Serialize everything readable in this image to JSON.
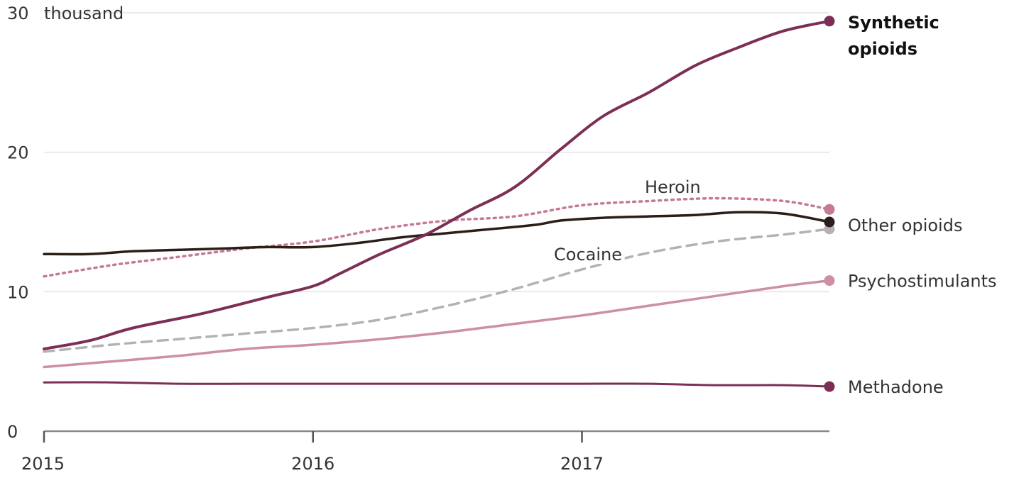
{
  "chart_data": {
    "type": "line",
    "y_unit_label": "thousand",
    "x_ticks": [
      "2015",
      "2016",
      "2017"
    ],
    "y_ticks": [
      0,
      10,
      20,
      30
    ],
    "xlim": [
      2015.0,
      2017.92
    ],
    "ylim": [
      0,
      30
    ],
    "grid": true,
    "legend": "direct labels at line ends",
    "series": [
      {
        "name": "Synthetic opioids",
        "label_style": "bold",
        "color": "#7d2e54",
        "stroke": "solid",
        "width": 4,
        "end_dot": true,
        "x": [
          2015.0,
          2015.17,
          2015.33,
          2015.58,
          2015.83,
          2016.0,
          2016.1,
          2016.25,
          2016.42,
          2016.58,
          2016.75,
          2016.92,
          2017.08,
          2017.25,
          2017.42,
          2017.58,
          2017.75,
          2017.92
        ],
        "y": [
          5.9,
          6.5,
          7.4,
          8.4,
          9.6,
          10.4,
          11.3,
          12.7,
          14.1,
          15.8,
          17.5,
          20.2,
          22.6,
          24.3,
          26.2,
          27.5,
          28.7,
          29.4
        ]
      },
      {
        "name": "Heroin",
        "color": "#c47a94",
        "stroke": "dotted",
        "width": 3.5,
        "end_dot": true,
        "x": [
          2015.0,
          2015.25,
          2015.5,
          2015.75,
          2016.0,
          2016.25,
          2016.5,
          2016.75,
          2017.0,
          2017.25,
          2017.5,
          2017.75,
          2017.92
        ],
        "y": [
          11.1,
          11.9,
          12.5,
          13.1,
          13.6,
          14.5,
          15.1,
          15.4,
          16.2,
          16.5,
          16.7,
          16.5,
          15.9
        ]
      },
      {
        "name": "Other opioids",
        "color": "#2b1d17",
        "stroke": "solid",
        "width": 3.5,
        "end_dot": true,
        "x": [
          2015.0,
          2015.17,
          2015.33,
          2015.5,
          2015.67,
          2015.83,
          2016.0,
          2016.17,
          2016.33,
          2016.5,
          2016.67,
          2016.83,
          2016.92,
          2017.08,
          2017.25,
          2017.42,
          2017.58,
          2017.75,
          2017.92
        ],
        "y": [
          12.7,
          12.7,
          12.9,
          13.0,
          13.1,
          13.2,
          13.2,
          13.5,
          13.9,
          14.2,
          14.5,
          14.8,
          15.1,
          15.3,
          15.4,
          15.5,
          15.7,
          15.6,
          15.0
        ]
      },
      {
        "name": "Cocaine",
        "color": "#b3b3b3",
        "stroke": "dashed",
        "width": 3.5,
        "end_dot": true,
        "x": [
          2015.0,
          2015.25,
          2015.5,
          2015.75,
          2016.0,
          2016.25,
          2016.5,
          2016.75,
          2017.0,
          2017.25,
          2017.5,
          2017.75,
          2017.92
        ],
        "y": [
          5.7,
          6.2,
          6.6,
          7.0,
          7.4,
          8.0,
          9.0,
          10.2,
          11.6,
          12.8,
          13.6,
          14.1,
          14.5
        ]
      },
      {
        "name": "Psychostimulants",
        "color": "#cc8fa6",
        "stroke": "solid",
        "width": 3.5,
        "end_dot": true,
        "x": [
          2015.0,
          2015.25,
          2015.5,
          2015.75,
          2016.0,
          2016.25,
          2016.5,
          2016.75,
          2017.0,
          2017.25,
          2017.5,
          2017.75,
          2017.92
        ],
        "y": [
          4.6,
          5.0,
          5.4,
          5.9,
          6.2,
          6.6,
          7.1,
          7.7,
          8.3,
          9.0,
          9.7,
          10.4,
          10.8
        ]
      },
      {
        "name": "Methadone",
        "color": "#7d2e54",
        "stroke": "solid",
        "width": 3,
        "end_dot": true,
        "x": [
          2015.0,
          2015.25,
          2015.5,
          2015.75,
          2016.0,
          2016.25,
          2016.5,
          2016.75,
          2017.0,
          2017.25,
          2017.5,
          2017.75,
          2017.92
        ],
        "y": [
          3.5,
          3.5,
          3.4,
          3.4,
          3.4,
          3.4,
          3.4,
          3.4,
          3.4,
          3.4,
          3.3,
          3.3,
          3.2
        ]
      }
    ]
  }
}
